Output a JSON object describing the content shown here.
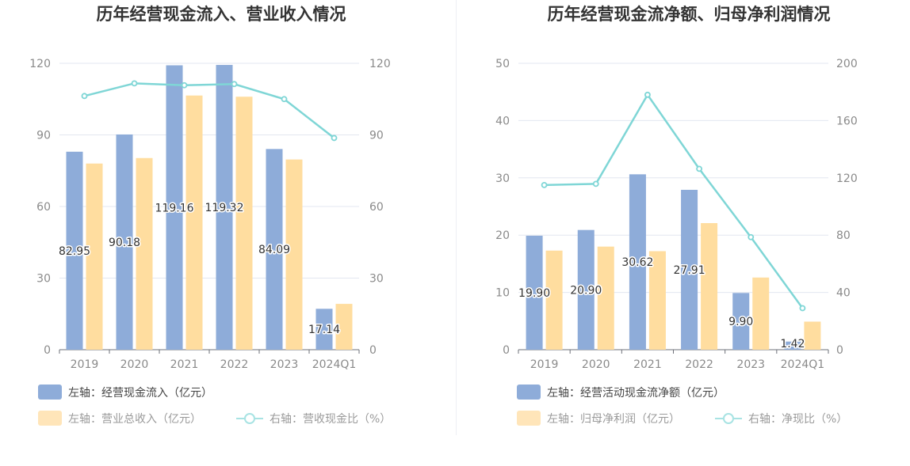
{
  "chart_data": [
    {
      "type": "bar",
      "title": "历年经营现金流入、营业收入情况",
      "categories": [
        "2019",
        "2020",
        "2021",
        "2022",
        "2023",
        "2024Q1"
      ],
      "series": [
        {
          "name": "经营现金流入",
          "axis": "left",
          "kind": "bar",
          "values": [
            82.95,
            90.18,
            119.16,
            119.32,
            84.09,
            17.14
          ],
          "labels": [
            "82.95",
            "90.18",
            "119.16",
            "119.32",
            "84.09",
            "17.14"
          ],
          "color": "#8eacd9"
        },
        {
          "name": "营业总收入",
          "axis": "left",
          "kind": "bar",
          "values": [
            78.0,
            80.3,
            106.5,
            106.0,
            79.7,
            19.2
          ],
          "color": "#ffdd9f"
        },
        {
          "name": "营收现金比",
          "axis": "right",
          "kind": "line",
          "values": [
            106.3,
            111.6,
            110.8,
            111.3,
            105.0,
            88.7
          ],
          "color": "#7fd6d6"
        }
      ],
      "left_axis": {
        "min": 0,
        "max": 120,
        "ticks": [
          "0",
          "30",
          "60",
          "90",
          "120"
        ]
      },
      "right_axis": {
        "min": 0,
        "max": 120,
        "ticks": [
          "0",
          "30",
          "60",
          "90",
          "120"
        ]
      },
      "legend": [
        {
          "label": "左轴：经营现金流入（亿元）",
          "marker": "bar",
          "color": "#8eacd9",
          "dim": false
        },
        {
          "label": "左轴：营业总收入（亿元）",
          "marker": "bar",
          "color": "#ffe5b9",
          "dim": true
        },
        {
          "label": "右轴：营收现金比（%）",
          "marker": "line",
          "color": "#a8e3e3",
          "dim": true
        }
      ]
    },
    {
      "type": "bar",
      "title": "历年经营现金流净额、归母净利润情况",
      "categories": [
        "2019",
        "2020",
        "2021",
        "2022",
        "2023",
        "2024Q1"
      ],
      "series": [
        {
          "name": "经营活动现金流净额",
          "axis": "left",
          "kind": "bar",
          "values": [
            19.9,
            20.9,
            30.62,
            27.91,
            9.9,
            1.42
          ],
          "labels": [
            "19.90",
            "20.90",
            "30.62",
            "27.91",
            "9.90",
            "1.42"
          ],
          "color": "#8eacd9"
        },
        {
          "name": "归母净利润",
          "axis": "left",
          "kind": "bar",
          "values": [
            17.3,
            18.0,
            17.2,
            22.1,
            12.6,
            4.9
          ],
          "color": "#ffdd9f"
        },
        {
          "name": "净现比",
          "axis": "right",
          "kind": "line",
          "values": [
            115.0,
            115.8,
            178.0,
            126.3,
            78.6,
            29.0
          ],
          "color": "#7fd6d6"
        }
      ],
      "left_axis": {
        "min": 0,
        "max": 50,
        "ticks": [
          "0",
          "10",
          "20",
          "30",
          "40",
          "50"
        ]
      },
      "right_axis": {
        "min": 0,
        "max": 200,
        "ticks": [
          "0",
          "40",
          "80",
          "120",
          "160",
          "200"
        ]
      },
      "legend": [
        {
          "label": "左轴：经营活动现金流净额（亿元）",
          "marker": "bar",
          "color": "#8eacd9",
          "dim": false
        },
        {
          "label": "左轴：归母净利润（亿元）",
          "marker": "bar",
          "color": "#ffe5b9",
          "dim": true
        },
        {
          "label": "右轴：净现比（%）",
          "marker": "line",
          "color": "#a8e3e3",
          "dim": true
        }
      ]
    }
  ]
}
